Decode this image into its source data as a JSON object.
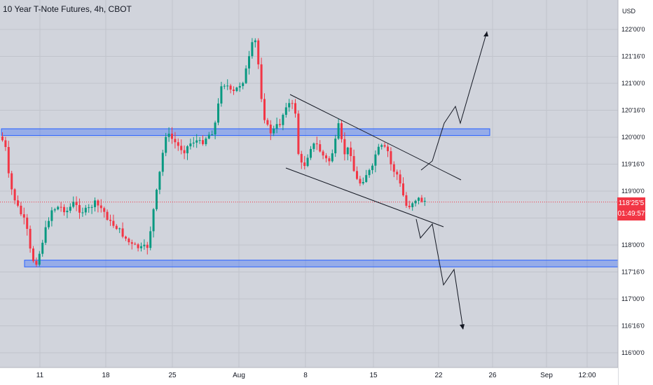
{
  "chart_data": {
    "type": "candlestick",
    "title": "10 Year T-Note Futures, 4h, CBOT",
    "currency": "USD",
    "y_ticks": [
      "122'00'0",
      "121'16'0",
      "121'00'0",
      "120'16'0",
      "120'00'0",
      "119'16'0",
      "119'00'0",
      "118'16'0",
      "118'00'0",
      "117'16'0",
      "117'00'0",
      "116'16'0",
      "116'00'0"
    ],
    "x_ticks": [
      "11",
      "18",
      "25",
      "Aug",
      "8",
      "15",
      "22",
      "26",
      "Sep",
      "12:00"
    ],
    "last_price": "118'25'5",
    "countdown": "01:49:57",
    "colors": {
      "up": "#089981",
      "down": "#f23645",
      "zone": "#2962ff",
      "last_price": "#f23645"
    },
    "zones": [
      {
        "name": "resistance-zone",
        "from": "120'01'0",
        "to": "120'05'0"
      },
      {
        "name": "support-zone",
        "from": "117'19'0",
        "to": "117'23'0"
      }
    ],
    "annotations": [
      "descending channel",
      "bullish breakout path",
      "bearish breakdown path"
    ],
    "grid": true
  }
}
